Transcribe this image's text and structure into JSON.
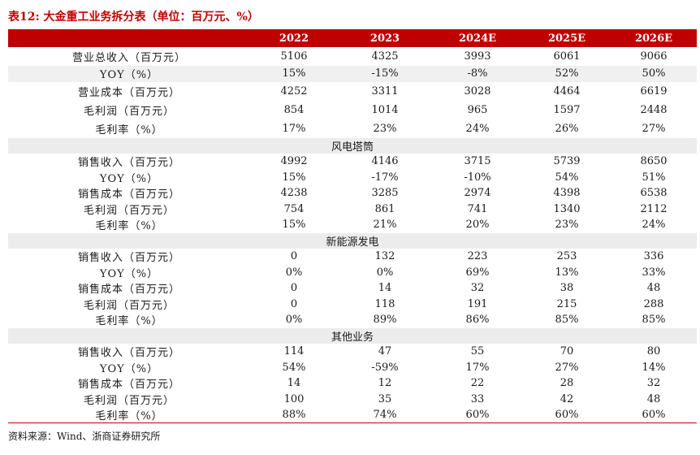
{
  "title": "表12:   大金重工业务拆分表（单位：百万元、%）",
  "header": [
    "",
    "2022",
    "2023",
    "2024E",
    "2025E",
    "2026E"
  ],
  "rows": [
    {
      "type": "data",
      "cells": [
        "营业总收入（百万元）",
        "5106",
        "4325",
        "3993",
        "6061",
        "9066"
      ]
    },
    {
      "type": "data",
      "cells": [
        "YOY（%）",
        "15%",
        "-15%",
        "-8%",
        "52%",
        "50%"
      ]
    },
    {
      "type": "data",
      "cells": [
        "营业成本（百万元）",
        "4252",
        "3311",
        "3028",
        "4464",
        "6619"
      ]
    },
    {
      "type": "data",
      "cells": [
        "毛利润（百万元）",
        "854",
        "1014",
        "965",
        "1597",
        "2448"
      ]
    },
    {
      "type": "data",
      "cells": [
        "毛利率（%）",
        "17%",
        "23%",
        "24%",
        "26%",
        "27%"
      ]
    },
    {
      "type": "section",
      "label": "风电塔筒"
    },
    {
      "type": "data",
      "cells": [
        "销售收入（百万元）",
        "4992",
        "4146",
        "3715",
        "5739",
        "8650"
      ]
    },
    {
      "type": "data",
      "cells": [
        "YOY（%）",
        "15%",
        "-17%",
        "-10%",
        "54%",
        "51%"
      ]
    },
    {
      "type": "data",
      "cells": [
        "销售成本（百万元）",
        "4238",
        "3285",
        "2974",
        "4398",
        "6538"
      ]
    },
    {
      "type": "data",
      "cells": [
        "毛利润（百万元）",
        "754",
        "861",
        "741",
        "1340",
        "2112"
      ]
    },
    {
      "type": "data",
      "cells": [
        "毛利率（%）",
        "15%",
        "21%",
        "20%",
        "23%",
        "24%"
      ]
    },
    {
      "type": "section",
      "label": "新能源发电"
    },
    {
      "type": "data",
      "cells": [
        "销售收入（百万元）",
        "0",
        "132",
        "223",
        "253",
        "336"
      ]
    },
    {
      "type": "data",
      "cells": [
        "YOY（%）",
        "0%",
        "0%",
        "69%",
        "13%",
        "33%"
      ]
    },
    {
      "type": "data",
      "cells": [
        "销售成本（百万元）",
        "0",
        "14",
        "32",
        "38",
        "48"
      ]
    },
    {
      "type": "data",
      "cells": [
        "毛利润（百万元）",
        "0",
        "118",
        "191",
        "215",
        "288"
      ]
    },
    {
      "type": "data",
      "cells": [
        "毛利率（%）",
        "0%",
        "89%",
        "86%",
        "85%",
        "85%"
      ]
    },
    {
      "type": "section",
      "label": "其他业务"
    },
    {
      "type": "data",
      "cells": [
        "销售收入（百万元）",
        "114",
        "47",
        "55",
        "70",
        "80"
      ]
    },
    {
      "type": "data",
      "cells": [
        "YOY（%）",
        "54%",
        "-59%",
        "17%",
        "27%",
        "14%"
      ]
    },
    {
      "type": "data",
      "cells": [
        "销售成本（百万元）",
        "14",
        "12",
        "22",
        "28",
        "32"
      ]
    },
    {
      "type": "data",
      "cells": [
        "毛利润（百万元）",
        "100",
        "35",
        "33",
        "42",
        "48"
      ]
    },
    {
      "type": "data",
      "cells": [
        "毛利率（%）",
        "88%",
        "74%",
        "60%",
        "60%",
        "60%"
      ]
    }
  ],
  "source": "资料来源：Wind、浙商证券研究所",
  "colors": {
    "accent": "#c00000",
    "shade": "#ececec"
  }
}
